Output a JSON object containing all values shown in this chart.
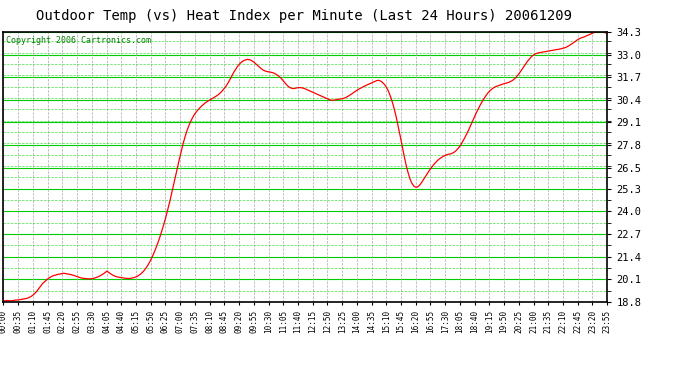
{
  "title": "Outdoor Temp (vs) Heat Index per Minute (Last 24 Hours) 20061209",
  "copyright": "Copyright 2006 Cartronics.com",
  "yticks": [
    18.8,
    20.1,
    21.4,
    22.7,
    24.0,
    25.3,
    26.5,
    27.8,
    29.1,
    30.4,
    31.7,
    33.0,
    34.3
  ],
  "ymin": 18.8,
  "ymax": 34.3,
  "background_color": "#ffffff",
  "figure_background": "#ffffff",
  "line_color": "#ff0000",
  "grid_color_h": "#00cc00",
  "grid_color_v": "#aaaaaa",
  "title_fontsize": 11,
  "copyright_fontsize": 6.5,
  "xtick_labels": [
    "00:00",
    "00:35",
    "01:10",
    "01:45",
    "02:20",
    "02:55",
    "03:30",
    "04:05",
    "04:40",
    "05:15",
    "05:50",
    "06:25",
    "07:00",
    "07:35",
    "08:10",
    "08:45",
    "09:20",
    "09:55",
    "10:30",
    "11:05",
    "11:40",
    "12:15",
    "12:50",
    "13:25",
    "14:00",
    "14:35",
    "15:10",
    "15:45",
    "16:20",
    "16:55",
    "17:30",
    "18:05",
    "18:40",
    "19:15",
    "19:50",
    "20:25",
    "21:00",
    "21:35",
    "22:10",
    "22:45",
    "23:20",
    "23:55"
  ],
  "temp_data": [
    18.85,
    18.87,
    18.88,
    18.87,
    18.86,
    18.88,
    18.9,
    18.91,
    18.92,
    18.94,
    18.96,
    18.98,
    19.0,
    19.05,
    19.1,
    19.18,
    19.28,
    19.4,
    19.55,
    19.7,
    19.85,
    19.95,
    20.05,
    20.15,
    20.22,
    20.28,
    20.32,
    20.35,
    20.38,
    20.4,
    20.42,
    20.44,
    20.42,
    20.4,
    20.38,
    20.35,
    20.32,
    20.28,
    20.24,
    20.2,
    20.17,
    20.15,
    20.14,
    20.13,
    20.12,
    20.13,
    20.15,
    20.18,
    20.22,
    20.27,
    20.33,
    20.4,
    20.48,
    20.57,
    20.48,
    20.4,
    20.33,
    20.28,
    20.24,
    20.22,
    20.2,
    20.18,
    20.16,
    20.15,
    20.14,
    20.15,
    20.17,
    20.2,
    20.24,
    20.3,
    20.38,
    20.48,
    20.6,
    20.75,
    20.92,
    21.12,
    21.35,
    21.6,
    21.88,
    22.18,
    22.5,
    22.85,
    23.22,
    23.62,
    24.05,
    24.5,
    24.98,
    25.48,
    25.98,
    26.48,
    26.98,
    27.45,
    27.9,
    28.3,
    28.65,
    28.95,
    29.2,
    29.42,
    29.6,
    29.75,
    29.88,
    30.0,
    30.1,
    30.2,
    30.28,
    30.35,
    30.42,
    30.48,
    30.55,
    30.62,
    30.7,
    30.8,
    30.92,
    31.05,
    31.2,
    31.38,
    31.58,
    31.8,
    32.0,
    32.18,
    32.35,
    32.48,
    32.58,
    32.65,
    32.7,
    32.72,
    32.7,
    32.65,
    32.58,
    32.48,
    32.38,
    32.28,
    32.18,
    32.1,
    32.05,
    32.02,
    32.0,
    31.98,
    31.95,
    31.9,
    31.83,
    31.75,
    31.65,
    31.52,
    31.38,
    31.25,
    31.15,
    31.08,
    31.05,
    31.05,
    31.08,
    31.1,
    31.1,
    31.08,
    31.05,
    31.0,
    30.95,
    30.9,
    30.85,
    30.8,
    30.75,
    30.7,
    30.65,
    30.6,
    30.55,
    30.5,
    30.45,
    30.4,
    30.38,
    30.38,
    30.4,
    30.42,
    30.44,
    30.46,
    30.48,
    30.52,
    30.58,
    30.65,
    30.72,
    30.8,
    30.88,
    30.95,
    31.02,
    31.08,
    31.14,
    31.2,
    31.25,
    31.3,
    31.35,
    31.4,
    31.45,
    31.5,
    31.52,
    31.48,
    31.4,
    31.28,
    31.12,
    30.9,
    30.62,
    30.28,
    29.88,
    29.42,
    28.9,
    28.35,
    27.78,
    27.22,
    26.7,
    26.25,
    25.88,
    25.62,
    25.45,
    25.38,
    25.4,
    25.5,
    25.65,
    25.82,
    26.0,
    26.18,
    26.35,
    26.5,
    26.65,
    26.78,
    26.9,
    27.0,
    27.08,
    27.15,
    27.2,
    27.25,
    27.28,
    27.3,
    27.35,
    27.42,
    27.52,
    27.65,
    27.8,
    28.0,
    28.2,
    28.42,
    28.65,
    28.9,
    29.15,
    29.4,
    29.65,
    29.88,
    30.1,
    30.3,
    30.48,
    30.65,
    30.8,
    30.92,
    31.02,
    31.1,
    31.16,
    31.2,
    31.24,
    31.28,
    31.32,
    31.35,
    31.38,
    31.42,
    31.48,
    31.55,
    31.65,
    31.78,
    31.92,
    32.08,
    32.25,
    32.42,
    32.58,
    32.72,
    32.85,
    32.95,
    33.02,
    33.07,
    33.1,
    33.12,
    33.14,
    33.16,
    33.18,
    33.2,
    33.22,
    33.24,
    33.26,
    33.28,
    33.3,
    33.32,
    33.35,
    33.38,
    33.42,
    33.48,
    33.55,
    33.62,
    33.7,
    33.78,
    33.86,
    33.92,
    33.97,
    34.0,
    34.05,
    34.1,
    34.15,
    34.2,
    34.25,
    34.28,
    34.3,
    34.32,
    34.33,
    34.3,
    34.25,
    34.2
  ]
}
